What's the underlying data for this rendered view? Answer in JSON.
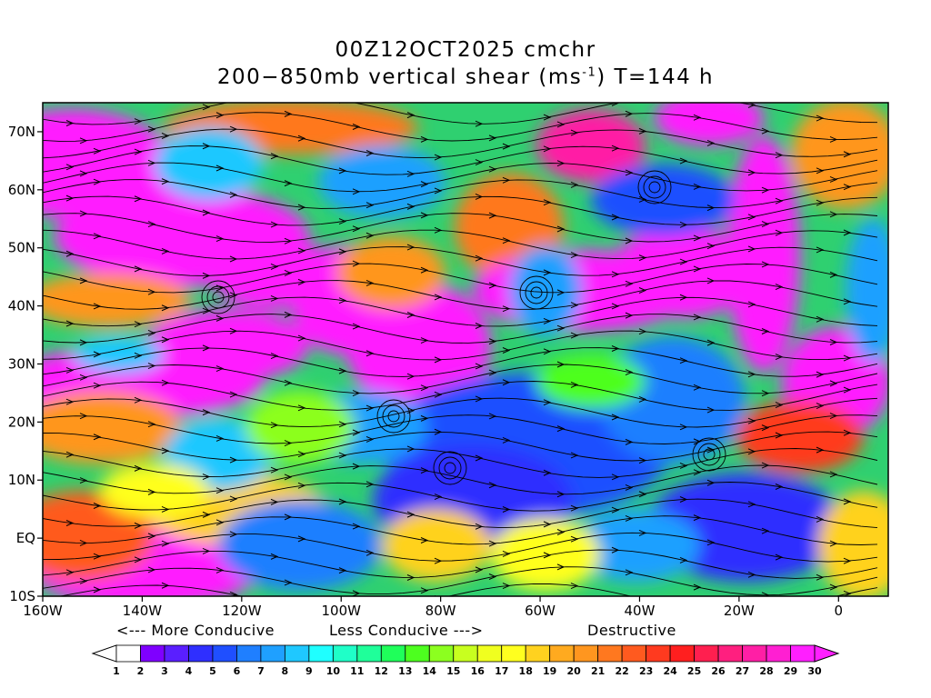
{
  "header": {
    "title_line1": "00Z12OCT2025 cmchr",
    "title_line2_prefix": "200−850mb vertical shear (ms",
    "title_line2_sup": "-1",
    "title_line2_suffix": ") T=144 h"
  },
  "map": {
    "lat_labels": [
      "70N",
      "60N",
      "50N",
      "40N",
      "30N",
      "20N",
      "10N",
      "EQ",
      "10S"
    ],
    "lat_values": [
      70,
      60,
      50,
      40,
      30,
      20,
      10,
      0,
      -10
    ],
    "lon_labels": [
      "160W",
      "140W",
      "120W",
      "100W",
      "80W",
      "60W",
      "40W",
      "20W",
      "0"
    ],
    "lon_values": [
      -160,
      -140,
      -120,
      -100,
      -80,
      -60,
      -40,
      -20,
      0
    ],
    "lon_range": [
      -160,
      10
    ],
    "lat_range": [
      -10,
      75
    ]
  },
  "notes": {
    "left": "<--- More Conducive",
    "mid": "Less Conducive --->",
    "right": "Destructive"
  },
  "colorbar": {
    "labels": [
      "1",
      "2",
      "3",
      "4",
      "5",
      "6",
      "7",
      "8",
      "9",
      "10",
      "11",
      "12",
      "13",
      "14",
      "15",
      "16",
      "17",
      "18",
      "19",
      "20",
      "21",
      "22",
      "23",
      "24",
      "25",
      "26",
      "27",
      "28",
      "29",
      "30"
    ],
    "colors": [
      "#ffffff",
      "#7f00ff",
      "#5a1fff",
      "#2f2fff",
      "#1f4fff",
      "#1f7fff",
      "#1fa0ff",
      "#1fc8ff",
      "#1fffff",
      "#1fffc8",
      "#1fff9a",
      "#1fff5a",
      "#4dff1f",
      "#8cff1f",
      "#c8ff1f",
      "#f0ff1f",
      "#ffff1f",
      "#ffd21f",
      "#ffaa1f",
      "#ff961f",
      "#ff781f",
      "#ff5a1f",
      "#ff3a1f",
      "#ff1f1f",
      "#ff1f4f",
      "#ff1f7f",
      "#ff1fa5",
      "#ff1fd2",
      "#ff1fff"
    ]
  }
}
